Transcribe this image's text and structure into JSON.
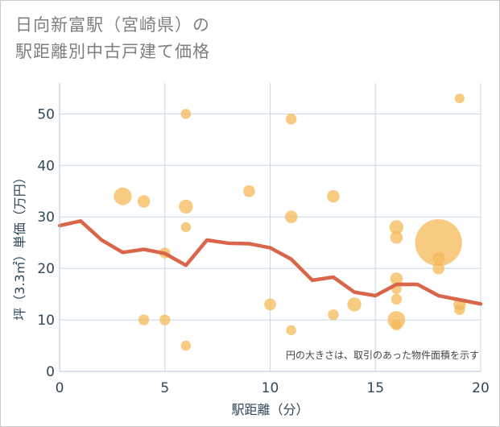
{
  "chart_data": {
    "type": "scatter",
    "title_lines": [
      "日向新富駅（宮崎県）の",
      "駅距離別中古戸建て価格"
    ],
    "xlabel": "駅距離（分）",
    "ylabel": "坪（3.3㎡）単価（万円）",
    "xlim": [
      0,
      20
    ],
    "ylim": [
      0,
      56
    ],
    "xticks": [
      0,
      5,
      10,
      15,
      20
    ],
    "yticks": [
      0,
      10,
      20,
      30,
      40,
      50
    ],
    "grid": true,
    "note": "円の大きさは、取引のあった物件面積を示す",
    "colors": {
      "bubble": "#f5b95a",
      "line": "#d9664a",
      "grid": "#c8d8e8",
      "text": "#2f4858"
    },
    "bubbles": [
      {
        "x": 3,
        "y": 34,
        "size": 4
      },
      {
        "x": 4,
        "y": 33,
        "size": 2
      },
      {
        "x": 4,
        "y": 10,
        "size": 1.5
      },
      {
        "x": 5,
        "y": 23,
        "size": 1.5
      },
      {
        "x": 5,
        "y": 10,
        "size": 1.5
      },
      {
        "x": 6,
        "y": 50,
        "size": 1.3
      },
      {
        "x": 6,
        "y": 32,
        "size": 2.5
      },
      {
        "x": 6,
        "y": 28,
        "size": 1.3
      },
      {
        "x": 6,
        "y": 5,
        "size": 1.3
      },
      {
        "x": 9,
        "y": 35,
        "size": 1.8
      },
      {
        "x": 10,
        "y": 13,
        "size": 1.8
      },
      {
        "x": 11,
        "y": 49,
        "size": 1.5
      },
      {
        "x": 11,
        "y": 30,
        "size": 2
      },
      {
        "x": 11,
        "y": 8,
        "size": 1.3
      },
      {
        "x": 13,
        "y": 34,
        "size": 2
      },
      {
        "x": 13,
        "y": 11,
        "size": 1.5
      },
      {
        "x": 14,
        "y": 13,
        "size": 2.5
      },
      {
        "x": 16,
        "y": 28,
        "size": 2.5
      },
      {
        "x": 16,
        "y": 26,
        "size": 2
      },
      {
        "x": 16,
        "y": 18,
        "size": 2
      },
      {
        "x": 16,
        "y": 16,
        "size": 1.3
      },
      {
        "x": 16,
        "y": 14,
        "size": 1.5
      },
      {
        "x": 16,
        "y": 10,
        "size": 4
      },
      {
        "x": 16,
        "y": 9,
        "size": 1.5
      },
      {
        "x": 18,
        "y": 25,
        "size": 28
      },
      {
        "x": 18,
        "y": 22,
        "size": 2
      },
      {
        "x": 18,
        "y": 20,
        "size": 1.8
      },
      {
        "x": 19,
        "y": 53,
        "size": 1.2
      },
      {
        "x": 19,
        "y": 13,
        "size": 2
      },
      {
        "x": 19,
        "y": 12,
        "size": 1.5
      }
    ],
    "trend": {
      "x": [
        0,
        1,
        2,
        3,
        4,
        5,
        6,
        7,
        8,
        9,
        10,
        11,
        12,
        13,
        14,
        15,
        16,
        17,
        18,
        19,
        20
      ],
      "y": [
        28.3,
        29.2,
        25.5,
        23.1,
        23.7,
        22.9,
        20.6,
        25.5,
        24.9,
        24.8,
        24.0,
        21.8,
        17.7,
        18.3,
        15.4,
        14.7,
        16.9,
        16.9,
        14.7,
        13.9,
        13.1
      ]
    }
  }
}
